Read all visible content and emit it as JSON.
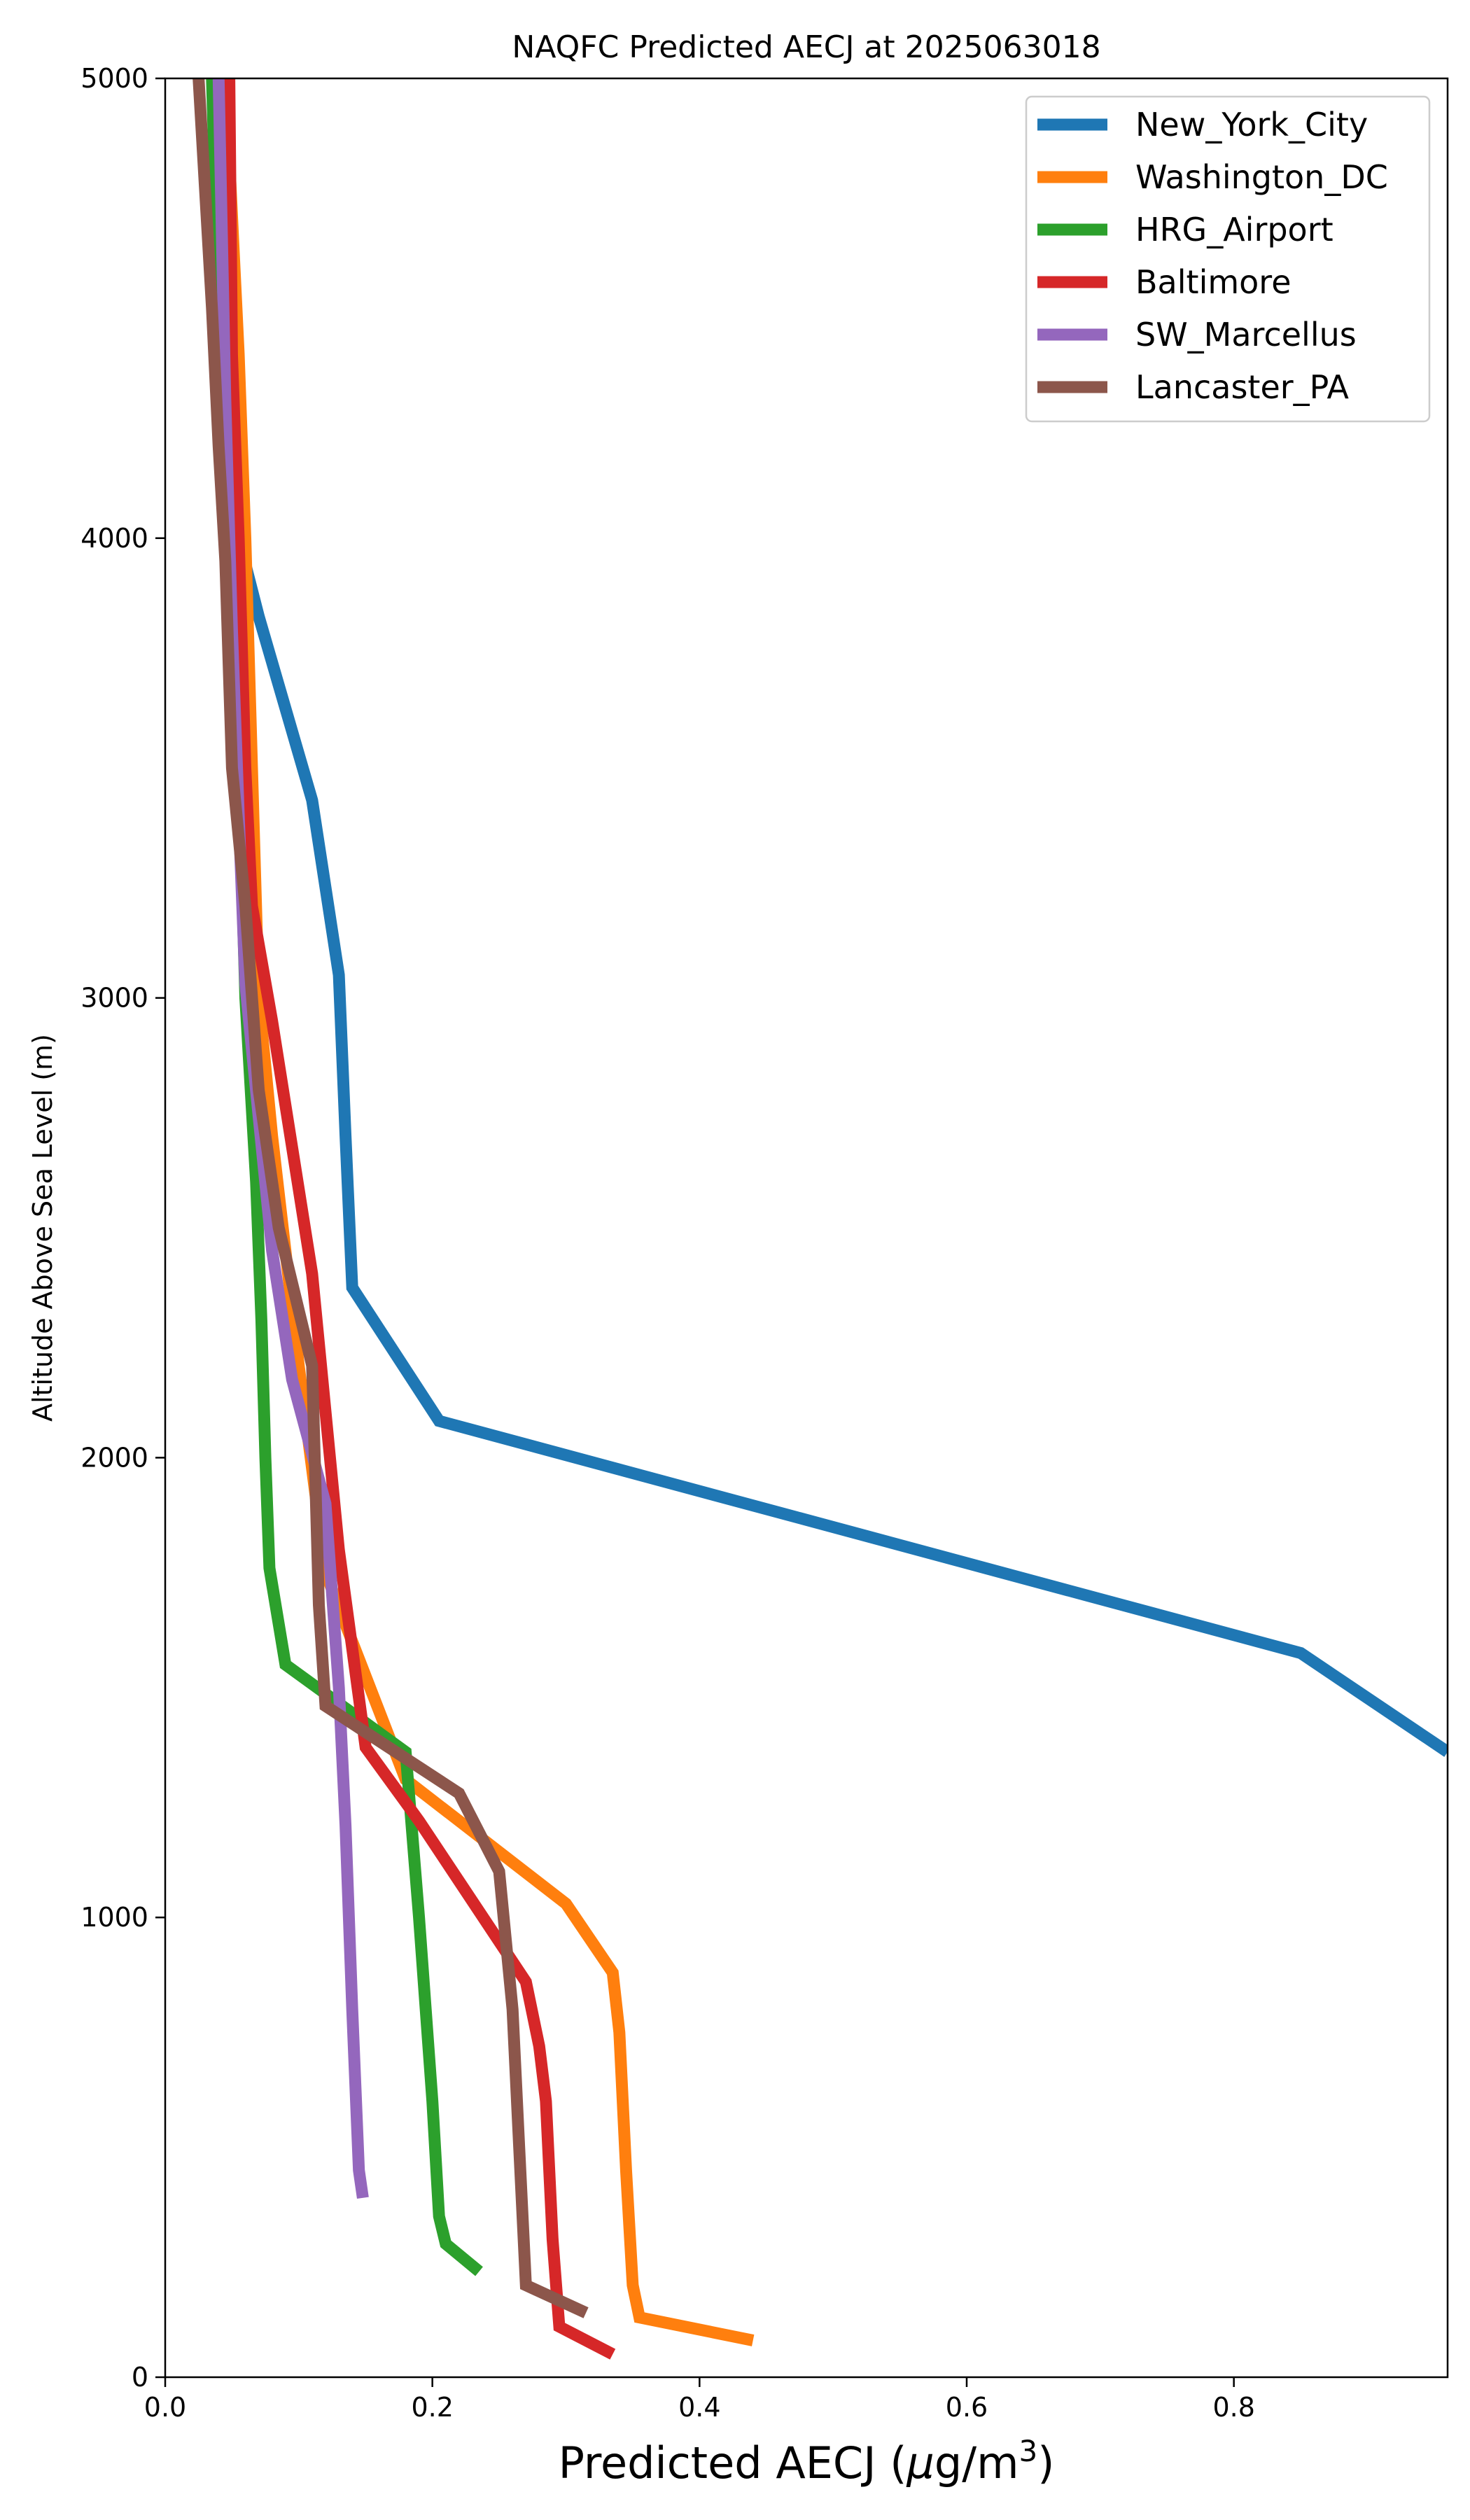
{
  "chart_data": {
    "type": "line",
    "title": "NAQFC Predicted AECJ at 2025063018",
    "xlabel": "Predicted AECJ (μg/m³)",
    "xlabel_parts": {
      "prefix": "Predicted AECJ (",
      "mu": "μ",
      "unit": "g/m",
      "sup": "3",
      "suffix": ")"
    },
    "ylabel": "Altitude Above Sea Level (m)",
    "xlim": [
      0.0,
      0.96
    ],
    "ylim": [
      0,
      5000
    ],
    "xticks": [
      0.0,
      0.2,
      0.4,
      0.6,
      0.8
    ],
    "xtick_labels": [
      "0.0",
      "0.2",
      "0.4",
      "0.6",
      "0.8"
    ],
    "yticks": [
      0,
      1000,
      2000,
      3000,
      4000,
      5000
    ],
    "ytick_labels": [
      "0",
      "1000",
      "2000",
      "3000",
      "4000",
      "5000"
    ],
    "grid": false,
    "legend_position": "top-right",
    "series": [
      {
        "name": "New_York_City",
        "color": "#1f77b4",
        "points": [
          [
            0.96,
            1360
          ],
          [
            0.85,
            1575
          ],
          [
            0.205,
            2080
          ],
          [
            0.14,
            2370
          ],
          [
            0.135,
            2700
          ],
          [
            0.13,
            3050
          ],
          [
            0.11,
            3430
          ],
          [
            0.07,
            3830
          ],
          [
            0.055,
            4000
          ],
          [
            0.05,
            4300
          ],
          [
            0.045,
            5000
          ]
        ]
      },
      {
        "name": "Washington_DC",
        "color": "#ff7f0e",
        "points": [
          [
            0.44,
            80
          ],
          [
            0.355,
            130
          ],
          [
            0.35,
            200
          ],
          [
            0.345,
            450
          ],
          [
            0.34,
            750
          ],
          [
            0.335,
            880
          ],
          [
            0.3,
            1030
          ],
          [
            0.18,
            1300
          ],
          [
            0.12,
            1750
          ],
          [
            0.1,
            2200
          ],
          [
            0.08,
            2700
          ],
          [
            0.07,
            3000
          ],
          [
            0.065,
            3500
          ],
          [
            0.06,
            4000
          ],
          [
            0.055,
            4400
          ],
          [
            0.045,
            5000
          ]
        ]
      },
      {
        "name": "HRG_Airport",
        "color": "#2ca02c",
        "points": [
          [
            0.235,
            230
          ],
          [
            0.21,
            290
          ],
          [
            0.205,
            350
          ],
          [
            0.2,
            600
          ],
          [
            0.19,
            1000
          ],
          [
            0.18,
            1360
          ],
          [
            0.09,
            1550
          ],
          [
            0.078,
            1760
          ],
          [
            0.075,
            2000
          ],
          [
            0.072,
            2300
          ],
          [
            0.068,
            2600
          ],
          [
            0.06,
            3000
          ],
          [
            0.055,
            3500
          ],
          [
            0.05,
            4000
          ],
          [
            0.04,
            4500
          ],
          [
            0.035,
            5000
          ]
        ]
      },
      {
        "name": "Baltimore",
        "color": "#d62728",
        "points": [
          [
            0.335,
            50
          ],
          [
            0.295,
            110
          ],
          [
            0.29,
            300
          ],
          [
            0.285,
            600
          ],
          [
            0.28,
            720
          ],
          [
            0.27,
            860
          ],
          [
            0.19,
            1210
          ],
          [
            0.15,
            1370
          ],
          [
            0.13,
            1800
          ],
          [
            0.12,
            2100
          ],
          [
            0.11,
            2400
          ],
          [
            0.08,
            2950
          ],
          [
            0.065,
            3200
          ],
          [
            0.06,
            3500
          ],
          [
            0.055,
            4000
          ],
          [
            0.05,
            4400
          ],
          [
            0.048,
            5000
          ]
        ]
      },
      {
        "name": "SW_Marcellus",
        "color": "#9467bd",
        "points": [
          [
            0.148,
            390
          ],
          [
            0.145,
            450
          ],
          [
            0.14,
            800
          ],
          [
            0.135,
            1200
          ],
          [
            0.13,
            1500
          ],
          [
            0.12,
            1900
          ],
          [
            0.095,
            2170
          ],
          [
            0.08,
            2450
          ],
          [
            0.06,
            3030
          ],
          [
            0.055,
            3400
          ],
          [
            0.05,
            3800
          ],
          [
            0.045,
            4300
          ],
          [
            0.04,
            5000
          ]
        ]
      },
      {
        "name": "Lancaster_PA",
        "color": "#8c564b",
        "points": [
          [
            0.315,
            140
          ],
          [
            0.27,
            200
          ],
          [
            0.265,
            500
          ],
          [
            0.26,
            800
          ],
          [
            0.25,
            1100
          ],
          [
            0.22,
            1270
          ],
          [
            0.12,
            1460
          ],
          [
            0.115,
            1680
          ],
          [
            0.11,
            2200
          ],
          [
            0.085,
            2500
          ],
          [
            0.07,
            2800
          ],
          [
            0.06,
            3200
          ],
          [
            0.05,
            3500
          ],
          [
            0.045,
            3950
          ],
          [
            0.04,
            4200
          ],
          [
            0.035,
            4500
          ],
          [
            0.025,
            5000
          ]
        ]
      }
    ]
  }
}
